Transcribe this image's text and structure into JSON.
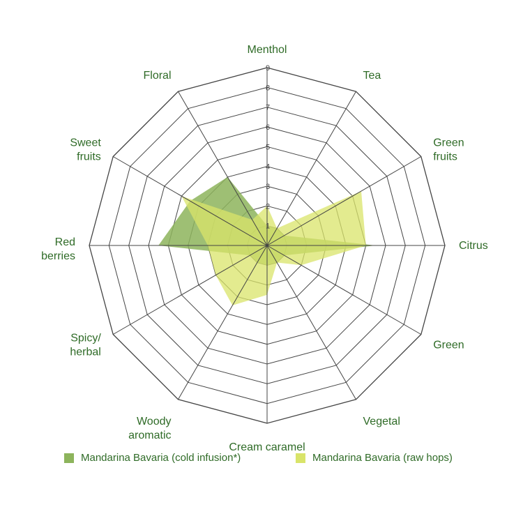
{
  "chart_data": {
    "type": "radar",
    "categories": [
      "Menthol",
      "Tea",
      "Green fruits",
      "Citrus",
      "Green",
      "Vegetal",
      "Cream caramel",
      "Woody aromatic",
      "Spicy/ herbal",
      "Red berries",
      "Sweet fruits",
      "Floral"
    ],
    "category_lines": [
      [
        "Menthol"
      ],
      [
        "Tea"
      ],
      [
        "Green",
        "fruits"
      ],
      [
        "Citrus"
      ],
      [
        "Green"
      ],
      [
        "Vegetal"
      ],
      [
        "Cream caramel"
      ],
      [
        "Woody",
        "aromatic"
      ],
      [
        "Spicy/",
        "herbal"
      ],
      [
        "Red",
        "berries"
      ],
      [
        "Sweet",
        "fruits"
      ],
      [
        "Floral"
      ]
    ],
    "rlim": [
      0,
      9
    ],
    "ticks": [
      "1",
      "2",
      "3",
      "4",
      "5",
      "6",
      "7",
      "8",
      "9"
    ],
    "series": [
      {
        "name": "Mandarina Bavaria (cold infusion*)",
        "color": "#8db45c",
        "values": [
          1,
          1,
          1,
          5.5,
          1,
          1,
          1,
          1,
          1,
          5.5,
          4.5,
          4
        ]
      },
      {
        "name": "Mandarina Bavaria (raw hops)",
        "color": "#d9e46a",
        "values": [
          2,
          1,
          5.5,
          5,
          2,
          1,
          2.5,
          3.5,
          3,
          3,
          5,
          1.5
        ]
      }
    ],
    "grid": true,
    "legend_position": "bottom"
  }
}
